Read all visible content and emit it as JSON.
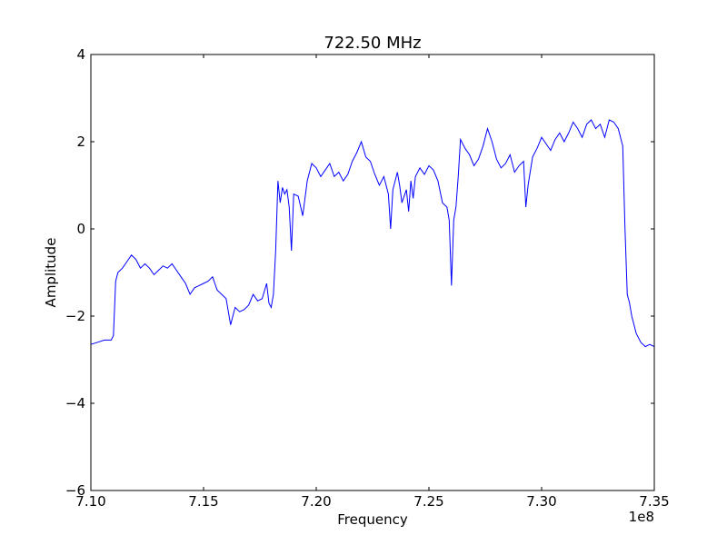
{
  "chart_data": {
    "type": "line",
    "title": "722.50 MHz",
    "xlabel": "Frequency",
    "ylabel": "Amplitude",
    "x_offset_label": "1e8",
    "xlim": [
      7.1,
      7.35
    ],
    "ylim": [
      -6,
      4
    ],
    "xticks": [
      7.1,
      7.15,
      7.2,
      7.25,
      7.3,
      7.35
    ],
    "xtick_labels": [
      "7.10",
      "7.15",
      "7.20",
      "7.25",
      "7.30",
      "7.35"
    ],
    "yticks": [
      -6,
      -4,
      -2,
      0,
      2,
      4
    ],
    "ytick_labels": [
      "−6",
      "−4",
      "−2",
      "0",
      "2",
      "4"
    ],
    "grid": false,
    "line_color": "#0000ff",
    "series": [
      {
        "x": [
          7.1,
          7.103,
          7.106,
          7.109,
          7.11,
          7.111,
          7.112,
          7.114,
          7.116,
          7.118,
          7.12,
          7.122,
          7.124,
          7.126,
          7.128,
          7.13,
          7.132,
          7.134,
          7.136,
          7.138,
          7.14,
          7.142,
          7.144,
          7.146,
          7.148,
          7.15,
          7.152,
          7.154,
          7.155,
          7.156,
          7.158,
          7.16,
          7.162,
          7.164,
          7.166,
          7.168,
          7.17,
          7.172,
          7.174,
          7.176,
          7.178,
          7.179,
          7.18,
          7.181,
          7.182,
          7.183,
          7.184,
          7.185,
          7.186,
          7.187,
          7.188,
          7.189,
          7.19,
          7.192,
          7.194,
          7.196,
          7.198,
          7.2,
          7.202,
          7.204,
          7.206,
          7.208,
          7.21,
          7.212,
          7.214,
          7.216,
          7.218,
          7.22,
          7.222,
          7.224,
          7.226,
          7.228,
          7.23,
          7.232,
          7.233,
          7.234,
          7.236,
          7.237,
          7.238,
          7.24,
          7.241,
          7.242,
          7.243,
          7.244,
          7.246,
          7.248,
          7.25,
          7.252,
          7.254,
          7.256,
          7.258,
          7.259,
          7.26,
          7.261,
          7.262,
          7.263,
          7.264,
          7.266,
          7.268,
          7.27,
          7.272,
          7.274,
          7.276,
          7.278,
          7.28,
          7.282,
          7.284,
          7.286,
          7.288,
          7.29,
          7.292,
          7.293,
          7.294,
          7.296,
          7.298,
          7.3,
          7.302,
          7.304,
          7.306,
          7.308,
          7.31,
          7.312,
          7.314,
          7.316,
          7.318,
          7.32,
          7.322,
          7.324,
          7.326,
          7.328,
          7.33,
          7.332,
          7.334,
          7.336,
          7.337,
          7.338,
          7.339,
          7.34,
          7.342,
          7.344,
          7.346,
          7.348,
          7.35
        ],
        "y": [
          -2.65,
          -2.6,
          -2.55,
          -2.55,
          -2.45,
          -1.2,
          -1.0,
          -0.9,
          -0.75,
          -0.6,
          -0.7,
          -0.9,
          -0.8,
          -0.9,
          -1.05,
          -0.95,
          -0.85,
          -0.9,
          -0.8,
          -0.95,
          -1.1,
          -1.25,
          -1.5,
          -1.35,
          -1.3,
          -1.25,
          -1.2,
          -1.1,
          -1.25,
          -1.4,
          -1.5,
          -1.6,
          -2.2,
          -1.8,
          -1.9,
          -1.85,
          -1.75,
          -1.5,
          -1.65,
          -1.6,
          -1.25,
          -1.7,
          -1.8,
          -1.5,
          -0.5,
          1.1,
          0.6,
          0.95,
          0.8,
          0.9,
          0.5,
          -0.5,
          0.8,
          0.75,
          0.3,
          1.1,
          1.5,
          1.4,
          1.2,
          1.35,
          1.5,
          1.2,
          1.3,
          1.1,
          1.25,
          1.55,
          1.75,
          2.0,
          1.65,
          1.55,
          1.25,
          1.0,
          1.2,
          0.8,
          0.0,
          0.9,
          1.3,
          1.0,
          0.6,
          0.9,
          0.4,
          1.1,
          0.7,
          1.2,
          1.4,
          1.25,
          1.45,
          1.35,
          1.1,
          0.6,
          0.5,
          0.2,
          -1.3,
          0.2,
          0.5,
          1.2,
          2.05,
          1.85,
          1.7,
          1.45,
          1.6,
          1.9,
          2.3,
          2.0,
          1.6,
          1.4,
          1.5,
          1.7,
          1.3,
          1.45,
          1.55,
          0.5,
          1.0,
          1.65,
          1.85,
          2.1,
          1.95,
          1.8,
          2.05,
          2.2,
          2.0,
          2.2,
          2.45,
          2.3,
          2.1,
          2.4,
          2.5,
          2.3,
          2.4,
          2.1,
          2.5,
          2.45,
          2.3,
          1.9,
          0.0,
          -1.5,
          -1.7,
          -2.0,
          -2.4,
          -2.6,
          -2.7,
          -2.65,
          -2.7
        ]
      }
    ]
  }
}
